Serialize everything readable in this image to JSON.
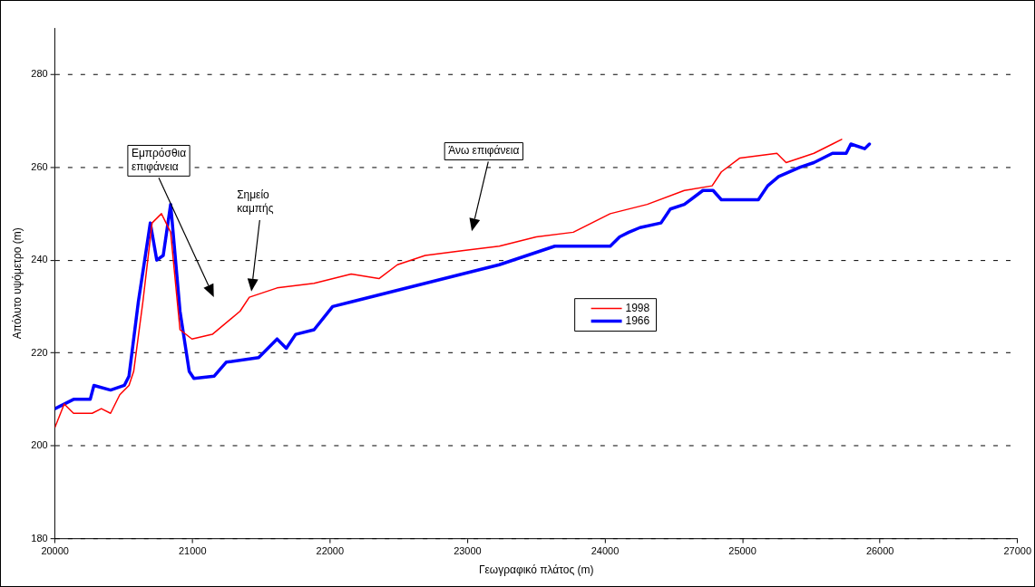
{
  "chart_data": {
    "type": "line",
    "xlabel": "Γεωγραφικό πλάτος (m)",
    "ylabel": "Απόλυτο υψόμετρο (m)",
    "xlim": [
      20000,
      27000
    ],
    "xticks": [
      20000,
      21000,
      22000,
      23000,
      24000,
      25000,
      26000,
      27000
    ],
    "ylim": [
      180,
      290
    ],
    "yticks": [
      180,
      200,
      220,
      240,
      260,
      280
    ],
    "grid": "y",
    "legend": "center",
    "marker": "none",
    "line_style": "solid",
    "annotations": [
      "Εμπρόσθια επιφάνεια",
      "Σημείο καμπής",
      "Άνω επιφάνεια"
    ],
    "series": [
      {
        "name": "1998",
        "color": "#ff0000",
        "x": [
          20000,
          20067,
          20135,
          20270,
          20337,
          20404,
          20471,
          20538,
          20572,
          20639,
          20706,
          20774,
          20841,
          20909,
          20996,
          21144,
          21346,
          21413,
          21615,
          21884,
          22154,
          22356,
          22490,
          22692,
          22961,
          23231,
          23500,
          23769,
          24038,
          24307,
          24577,
          24779,
          24846,
          24981,
          25250,
          25317,
          25519,
          25654,
          25721
        ],
        "values": [
          204,
          209,
          207,
          207,
          208,
          207,
          211,
          213,
          216,
          231,
          248,
          250,
          246,
          225,
          223,
          224,
          229,
          232,
          234,
          235,
          237,
          236,
          239,
          241,
          242,
          243,
          245,
          246,
          250,
          252,
          255,
          256,
          259,
          262,
          263,
          261,
          263,
          265,
          266
        ]
      },
      {
        "name": "1966",
        "color": "#0000ff",
        "x": [
          20000,
          20135,
          20256,
          20283,
          20404,
          20504,
          20538,
          20606,
          20693,
          20740,
          20787,
          20841,
          20909,
          20976,
          21010,
          21158,
          21245,
          21481,
          21548,
          21615,
          21682,
          21750,
          21884,
          22019,
          22154,
          22423,
          22692,
          22961,
          23231,
          23433,
          23635,
          24038,
          24106,
          24173,
          24254,
          24407,
          24475,
          24577,
          24712,
          24786,
          24846,
          24981,
          25115,
          25183,
          25263,
          25418,
          25519,
          25654,
          25754,
          25788,
          25889,
          25923
        ],
        "values": [
          208,
          210,
          210,
          213,
          212,
          213,
          215,
          231,
          248,
          240,
          241,
          252,
          229,
          216,
          214.5,
          215,
          218,
          219,
          221,
          223,
          221,
          224,
          225,
          230,
          231,
          233,
          235,
          237,
          239,
          241,
          243,
          243,
          245,
          246,
          247,
          248,
          251,
          252,
          255,
          255,
          253,
          253,
          253,
          256,
          258,
          260,
          261,
          263,
          263,
          265,
          264,
          265
        ]
      }
    ]
  }
}
